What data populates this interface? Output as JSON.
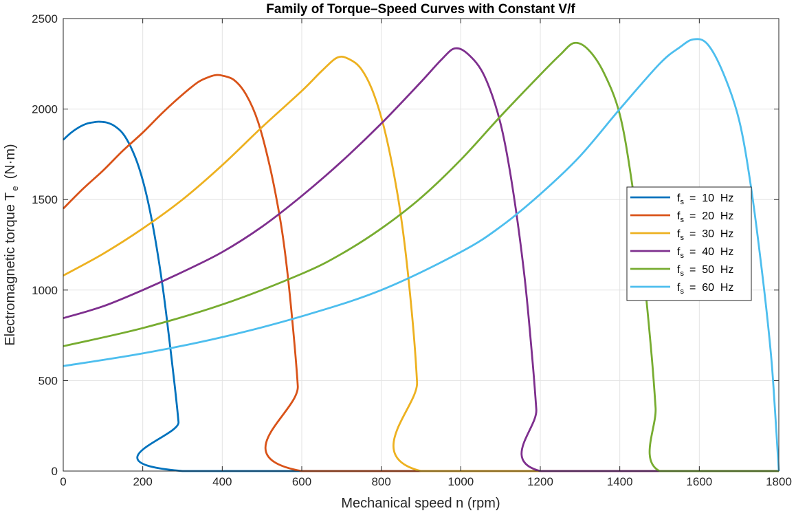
{
  "chart_data": {
    "type": "line",
    "title": "Family of Torque–Speed Curves with Constant V/f",
    "xlabel": "Mechanical speed n (rpm)",
    "ylabel": {
      "text": "Electromagnetic torque T",
      "subscript": "e",
      "unit": "(N·m)"
    },
    "xlim": [
      0,
      1800
    ],
    "ylim": [
      0,
      2500
    ],
    "xticks": [
      0,
      200,
      400,
      600,
      800,
      1000,
      1200,
      1400,
      1600,
      1800
    ],
    "yticks": [
      0,
      500,
      1000,
      1500,
      2000,
      2500
    ],
    "grid": true,
    "legend_position": "right",
    "series": [
      {
        "name": "f_s = 10 Hz",
        "label": {
          "var": "f",
          "sub": "s",
          "value": "=  10  Hz"
        },
        "color": "#0072BD",
        "points": [
          [
            0,
            1830
          ],
          [
            20,
            1870
          ],
          [
            40,
            1900
          ],
          [
            60,
            1920
          ],
          [
            80,
            1928
          ],
          [
            90,
            1930
          ],
          [
            110,
            1925
          ],
          [
            130,
            1905
          ],
          [
            150,
            1865
          ],
          [
            170,
            1790
          ],
          [
            190,
            1680
          ],
          [
            210,
            1520
          ],
          [
            230,
            1300
          ],
          [
            250,
            1020
          ],
          [
            265,
            760
          ],
          [
            280,
            480
          ],
          [
            290,
            270
          ],
          [
            300,
            0
          ],
          [
            1800,
            0
          ]
        ]
      },
      {
        "name": "f_s = 20 Hz",
        "label": {
          "var": "f",
          "sub": "s",
          "value": "=  20  Hz"
        },
        "color": "#D95319",
        "points": [
          [
            0,
            1450
          ],
          [
            50,
            1560
          ],
          [
            100,
            1660
          ],
          [
            150,
            1770
          ],
          [
            200,
            1870
          ],
          [
            250,
            1980
          ],
          [
            300,
            2080
          ],
          [
            340,
            2150
          ],
          [
            370,
            2180
          ],
          [
            385,
            2188
          ],
          [
            400,
            2185
          ],
          [
            430,
            2160
          ],
          [
            460,
            2080
          ],
          [
            490,
            1930
          ],
          [
            520,
            1680
          ],
          [
            545,
            1400
          ],
          [
            560,
            1170
          ],
          [
            575,
            860
          ],
          [
            590,
            470
          ],
          [
            600,
            0
          ],
          [
            1800,
            0
          ]
        ]
      },
      {
        "name": "f_s = 30 Hz",
        "label": {
          "var": "f",
          "sub": "s",
          "value": "=  30  Hz"
        },
        "color": "#EDB120",
        "points": [
          [
            0,
            1080
          ],
          [
            100,
            1200
          ],
          [
            200,
            1340
          ],
          [
            300,
            1500
          ],
          [
            400,
            1690
          ],
          [
            500,
            1900
          ],
          [
            600,
            2100
          ],
          [
            650,
            2210
          ],
          [
            690,
            2285
          ],
          [
            720,
            2275
          ],
          [
            750,
            2220
          ],
          [
            780,
            2090
          ],
          [
            810,
            1870
          ],
          [
            840,
            1540
          ],
          [
            860,
            1230
          ],
          [
            880,
            800
          ],
          [
            890,
            490
          ],
          [
            900,
            0
          ],
          [
            1800,
            0
          ]
        ]
      },
      {
        "name": "f_s = 40 Hz",
        "label": {
          "var": "f",
          "sub": "s",
          "value": "=  40  Hz"
        },
        "color": "#7E2F8E",
        "points": [
          [
            0,
            845
          ],
          [
            100,
            910
          ],
          [
            200,
            1000
          ],
          [
            300,
            1100
          ],
          [
            400,
            1210
          ],
          [
            500,
            1350
          ],
          [
            600,
            1520
          ],
          [
            700,
            1710
          ],
          [
            800,
            1920
          ],
          [
            900,
            2150
          ],
          [
            950,
            2270
          ],
          [
            985,
            2335
          ],
          [
            1020,
            2300
          ],
          [
            1060,
            2180
          ],
          [
            1100,
            1920
          ],
          [
            1130,
            1570
          ],
          [
            1160,
            1080
          ],
          [
            1180,
            620
          ],
          [
            1190,
            340
          ],
          [
            1200,
            0
          ],
          [
            1800,
            0
          ]
        ]
      },
      {
        "name": "f_s = 50 Hz",
        "label": {
          "var": "f",
          "sub": "s",
          "value": "=  50  Hz"
        },
        "color": "#77AC30",
        "points": [
          [
            0,
            690
          ],
          [
            200,
            790
          ],
          [
            400,
            920
          ],
          [
            600,
            1090
          ],
          [
            700,
            1200
          ],
          [
            800,
            1340
          ],
          [
            900,
            1510
          ],
          [
            1000,
            1720
          ],
          [
            1100,
            1960
          ],
          [
            1200,
            2190
          ],
          [
            1250,
            2300
          ],
          [
            1285,
            2365
          ],
          [
            1320,
            2330
          ],
          [
            1360,
            2200
          ],
          [
            1400,
            1970
          ],
          [
            1430,
            1600
          ],
          [
            1460,
            1090
          ],
          [
            1480,
            640
          ],
          [
            1490,
            350
          ],
          [
            1500,
            0
          ],
          [
            1800,
            0
          ]
        ]
      },
      {
        "name": "f_s = 60 Hz",
        "label": {
          "var": "f",
          "sub": "s",
          "value": "=  60  Hz"
        },
        "color": "#4DBEEE",
        "points": [
          [
            0,
            580
          ],
          [
            200,
            650
          ],
          [
            400,
            740
          ],
          [
            600,
            855
          ],
          [
            800,
            1000
          ],
          [
            1000,
            1210
          ],
          [
            1100,
            1350
          ],
          [
            1200,
            1530
          ],
          [
            1300,
            1740
          ],
          [
            1400,
            2000
          ],
          [
            1500,
            2250
          ],
          [
            1550,
            2340
          ],
          [
            1585,
            2385
          ],
          [
            1620,
            2360
          ],
          [
            1660,
            2200
          ],
          [
            1700,
            1940
          ],
          [
            1730,
            1570
          ],
          [
            1760,
            1060
          ],
          [
            1780,
            650
          ],
          [
            1790,
            350
          ],
          [
            1800,
            0
          ]
        ]
      }
    ]
  }
}
